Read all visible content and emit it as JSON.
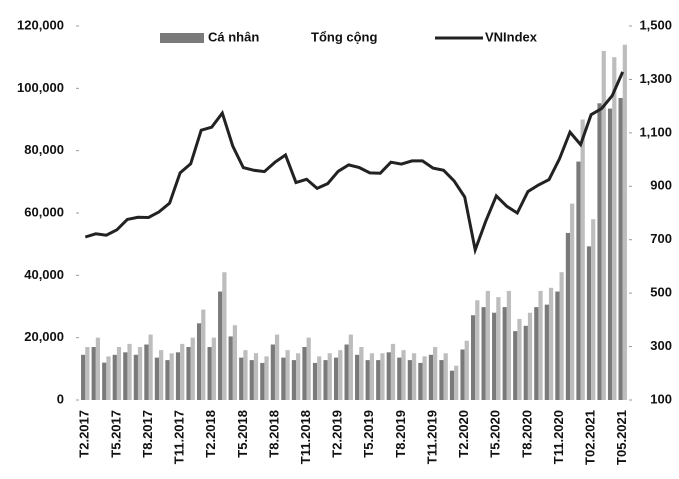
{
  "chart_data": {
    "type": "bar",
    "categories": [
      "T2.2017",
      null,
      null,
      "T5.2017",
      null,
      null,
      "T8.2017",
      null,
      null,
      "T11.2017",
      null,
      null,
      "T2.2018",
      null,
      null,
      "T5.2018",
      null,
      null,
      "T8.2018",
      null,
      null,
      "T11.2018",
      null,
      null,
      "T2.2019",
      null,
      null,
      "T5.2019",
      null,
      null,
      "T8.2019",
      null,
      null,
      "T11.2019",
      null,
      null,
      "T2.2020",
      null,
      null,
      "T5.2020",
      null,
      null,
      "T8.2020",
      null,
      null,
      "T11.2020",
      null,
      null,
      "T02.2021",
      null,
      null,
      "T05.2021"
    ],
    "series": [
      {
        "name": "Cá nhân",
        "color": "#7a7a7a",
        "values": [
          14500,
          17000,
          12000,
          14500,
          15300,
          14500,
          17800,
          13600,
          12800,
          15300,
          17000,
          24600,
          17000,
          34800,
          20400,
          13600,
          12800,
          11900,
          17800,
          13600,
          12800,
          17000,
          11900,
          12800,
          13600,
          17800,
          14500,
          12800,
          12800,
          15300,
          13600,
          12800,
          11900,
          14500,
          12800,
          9400,
          16200,
          27200,
          29800,
          28000,
          29800,
          22100,
          23800,
          29800,
          30600,
          34800,
          53600,
          76500,
          49300,
          95200,
          93500,
          96900
        ]
      },
      {
        "name": "Tổng cộng",
        "color": "#bdbdbd",
        "values": [
          17000,
          20000,
          14000,
          17000,
          18000,
          17000,
          21000,
          16000,
          15000,
          18000,
          20000,
          29000,
          20000,
          41000,
          24000,
          16000,
          15000,
          14000,
          21000,
          16000,
          15000,
          20000,
          14000,
          15000,
          16000,
          21000,
          17000,
          15000,
          15000,
          18000,
          16000,
          15000,
          14000,
          17000,
          15000,
          11000,
          19000,
          32000,
          35000,
          33000,
          35000,
          26000,
          28000,
          35000,
          36000,
          41000,
          63000,
          90000,
          58000,
          112000,
          110000,
          114000
        ]
      },
      {
        "name": "VNIndex",
        "color": "#222222",
        "axis": "y2",
        "values": [
          710,
          722,
          717,
          737,
          776,
          784,
          783,
          804,
          837,
          950,
          984,
          1110,
          1121,
          1174,
          1050,
          970,
          960,
          955,
          990,
          1017,
          914,
          926,
          892,
          910,
          956,
          980,
          970,
          950,
          949,
          990,
          983,
          995,
          995,
          968,
          960,
          920,
          860,
          662,
          769,
          864,
          825,
          800,
          880,
          905,
          925,
          1003,
          1103,
          1056,
          1168,
          1191,
          1239,
          1328
        ]
      }
    ],
    "ylim": [
      0,
      120000
    ],
    "yticks": [
      0,
      {
        "value": 20000,
        "label": "20,000"
      },
      {
        "value": 40000,
        "label": "40,000"
      },
      {
        "value": 60000,
        "label": "60,000"
      },
      {
        "value": 80000,
        "label": "80,000"
      },
      {
        "value": 100000,
        "label": "100,000"
      },
      {
        "value": 120000,
        "label": "120,000"
      }
    ],
    "y2lim": [
      100,
      1500
    ],
    "y2ticks": [
      100,
      300,
      500,
      700,
      900,
      {
        "value": 1100,
        "label": "1,100"
      },
      {
        "value": 1300,
        "label": "1,300"
      },
      {
        "value": 1500,
        "label": "1,500"
      }
    ],
    "legend": "top"
  }
}
